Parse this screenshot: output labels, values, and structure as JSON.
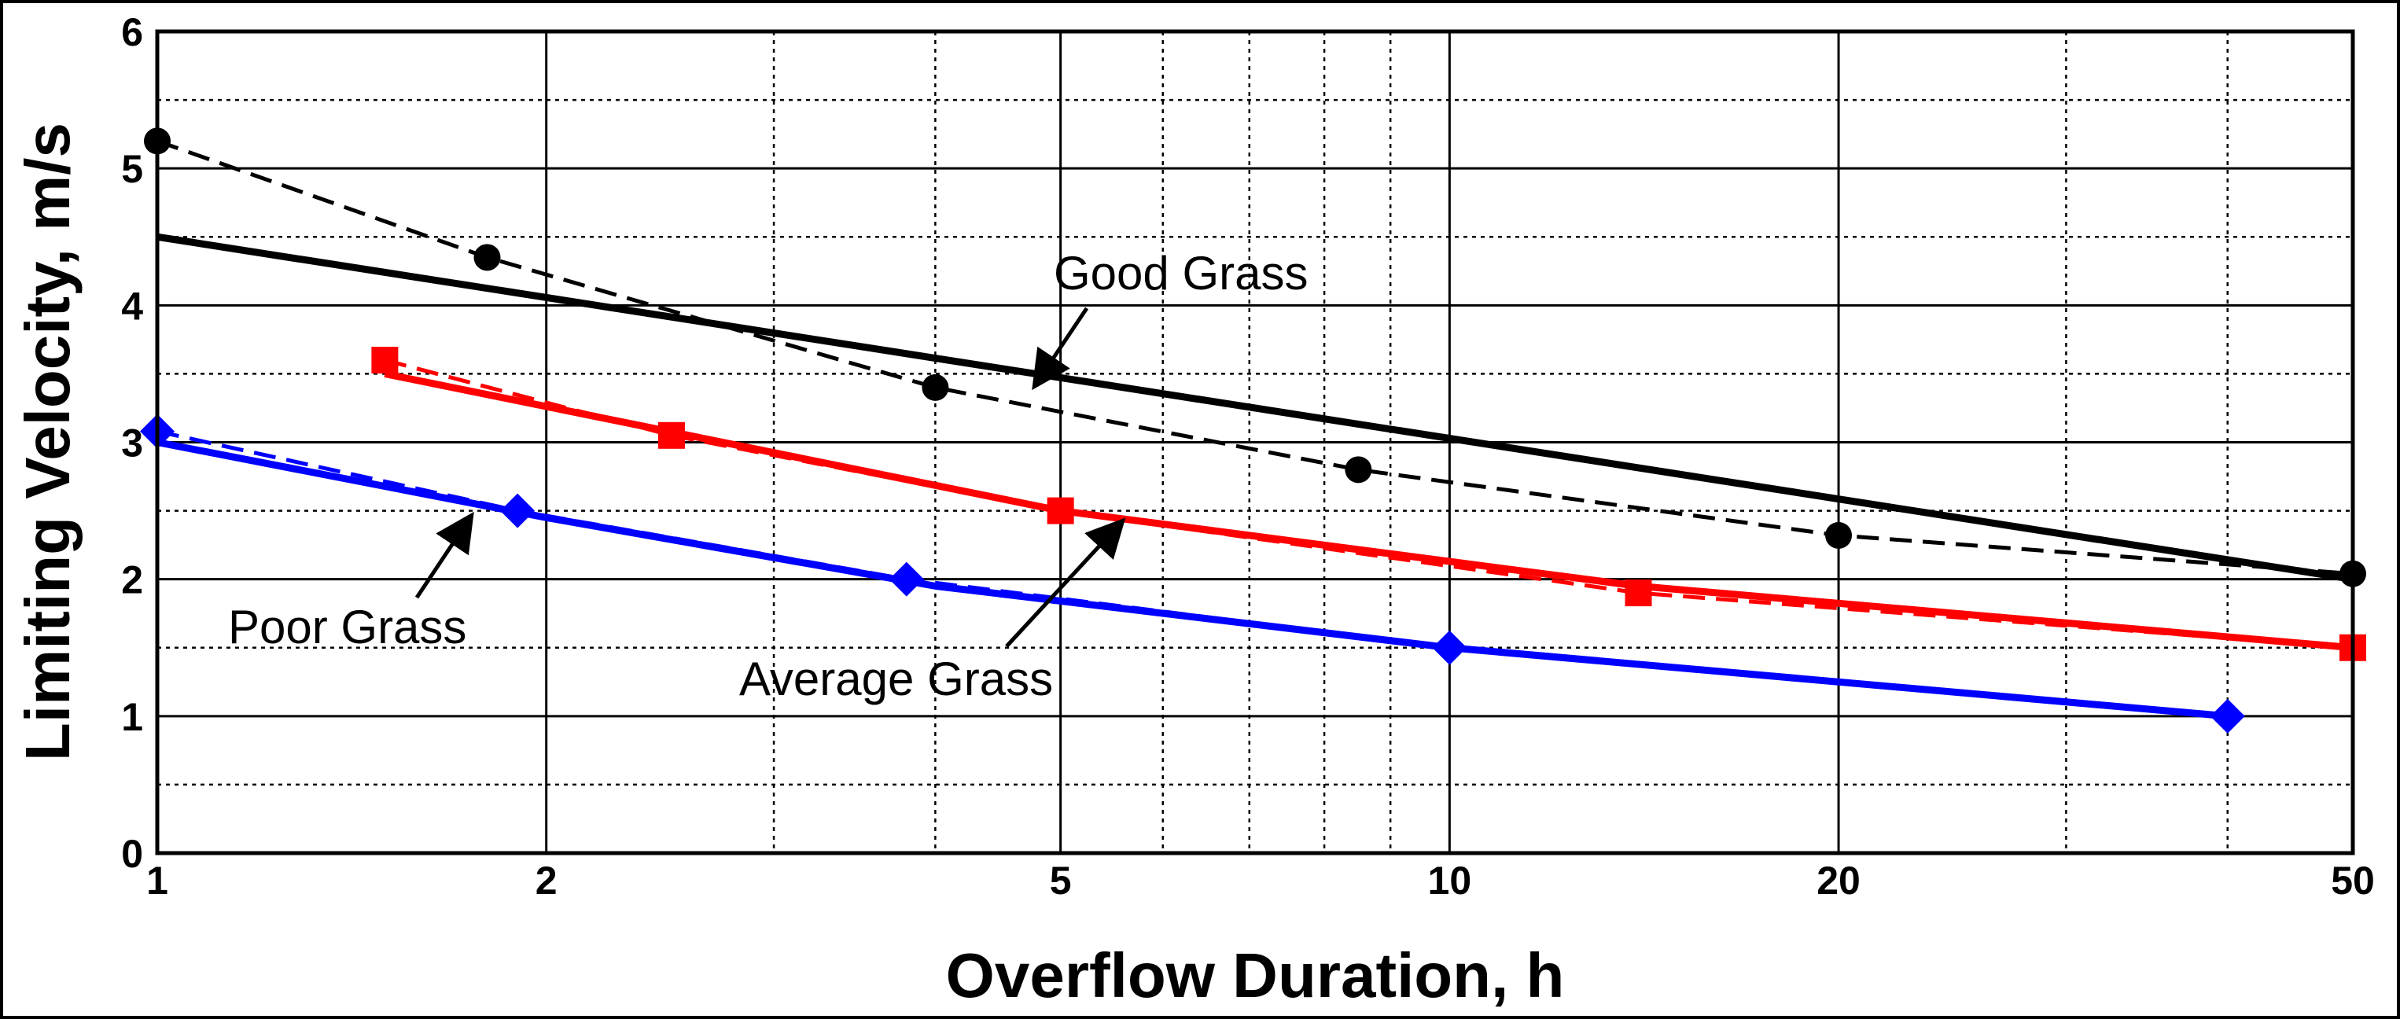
{
  "chart_data": {
    "type": "line",
    "title": "",
    "xlabel": "Overflow Duration, h",
    "ylabel": "Limiting Velocity, m/s",
    "xscale": "log",
    "xlim": [
      1,
      50
    ],
    "ylim": [
      0,
      6
    ],
    "x_major_ticks": [
      1,
      2,
      5,
      10,
      20,
      50
    ],
    "x_major_tick_labels": [
      "1",
      "2",
      "5",
      "10",
      "20",
      "50"
    ],
    "x_minor_gridlines": [
      3,
      4,
      6,
      7,
      8,
      9,
      30,
      40
    ],
    "y_major_ticks": [
      0,
      1,
      2,
      3,
      4,
      5,
      6
    ],
    "y_major_tick_labels": [
      "0",
      "1",
      "2",
      "3",
      "4",
      "5",
      "6"
    ],
    "y_minor_gridlines": [
      0.5,
      1.5,
      2.5,
      3.5,
      4.5,
      5.5
    ],
    "grid": true,
    "legend": "none (direct annotations)",
    "series": [
      {
        "name": "Good Grass",
        "color": "#000000",
        "marker": "circle",
        "points": {
          "x": [
            1,
            1.8,
            4,
            8.5,
            20,
            50
          ],
          "y": [
            5.2,
            4.35,
            3.4,
            2.8,
            2.32,
            2.04
          ]
        },
        "fit_line": {
          "x": [
            1,
            50
          ],
          "y": [
            4.5,
            2.0
          ]
        }
      },
      {
        "name": "Average Grass",
        "color": "#ff0000",
        "marker": "square",
        "points": {
          "x": [
            1.5,
            2.5,
            5,
            14,
            50
          ],
          "y": [
            3.6,
            3.05,
            2.5,
            1.9,
            1.5
          ]
        },
        "fit_line": {
          "x": [
            1.5,
            5,
            14,
            50
          ],
          "y": [
            3.5,
            2.5,
            1.95,
            1.5
          ]
        }
      },
      {
        "name": "Poor Grass",
        "color": "#0000ff",
        "marker": "diamond",
        "points": {
          "x": [
            1,
            1.9,
            3.8,
            10,
            40
          ],
          "y": [
            3.08,
            2.5,
            2.0,
            1.5,
            1.0
          ]
        },
        "fit_line": {
          "x": [
            1,
            2,
            4,
            10,
            40
          ],
          "y": [
            3.0,
            2.45,
            1.95,
            1.5,
            1.0
          ]
        }
      }
    ],
    "annotations": [
      {
        "text": "Good Grass",
        "arrow_to": {
          "x": 4.8,
          "y": 3.4
        }
      },
      {
        "text": "Average Grass",
        "arrow_to": {
          "x": 5.6,
          "y": 2.45
        }
      },
      {
        "text": "Poor Grass",
        "arrow_to": {
          "x": 1.8,
          "y": 2.42
        }
      }
    ]
  }
}
